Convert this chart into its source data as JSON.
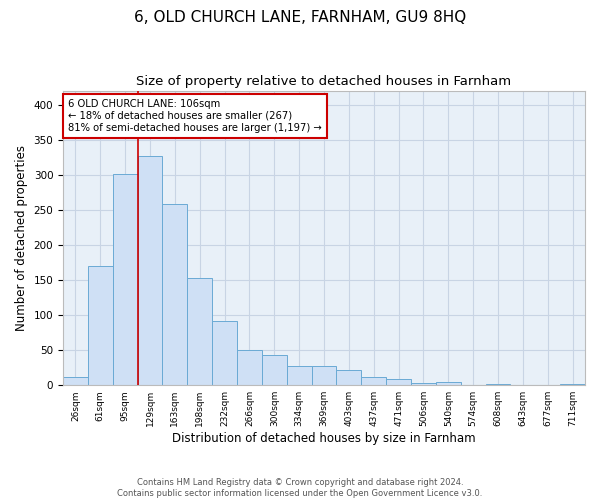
{
  "title_line1": "6, OLD CHURCH LANE, FARNHAM, GU9 8HQ",
  "title_line2": "Size of property relative to detached houses in Farnham",
  "xlabel": "Distribution of detached houses by size in Farnham",
  "ylabel": "Number of detached properties",
  "footer": "Contains HM Land Registry data © Crown copyright and database right 2024.\nContains public sector information licensed under the Open Government Licence v3.0.",
  "bar_labels": [
    "26sqm",
    "61sqm",
    "95sqm",
    "129sqm",
    "163sqm",
    "198sqm",
    "232sqm",
    "266sqm",
    "300sqm",
    "334sqm",
    "369sqm",
    "403sqm",
    "437sqm",
    "471sqm",
    "506sqm",
    "540sqm",
    "574sqm",
    "608sqm",
    "643sqm",
    "677sqm",
    "711sqm"
  ],
  "bar_values": [
    11,
    170,
    301,
    327,
    259,
    153,
    92,
    50,
    43,
    27,
    27,
    21,
    11,
    9,
    3,
    5,
    0,
    2,
    0,
    0,
    2
  ],
  "bar_color": "#cfe0f5",
  "bar_edge_color": "#6aaad4",
  "grid_color": "#c8d4e4",
  "background_color": "#e8f0f8",
  "vline_x": 2.5,
  "vline_color": "#cc0000",
  "annotation_text": "6 OLD CHURCH LANE: 106sqm\n← 18% of detached houses are smaller (267)\n81% of semi-detached houses are larger (1,197) →",
  "annotation_box_color": "white",
  "annotation_box_edge_color": "#cc0000",
  "ylim": [
    0,
    420
  ],
  "yticks": [
    0,
    50,
    100,
    150,
    200,
    250,
    300,
    350,
    400
  ],
  "title_fontsize": 11,
  "subtitle_fontsize": 9.5,
  "figsize": [
    6.0,
    5.0
  ],
  "dpi": 100
}
